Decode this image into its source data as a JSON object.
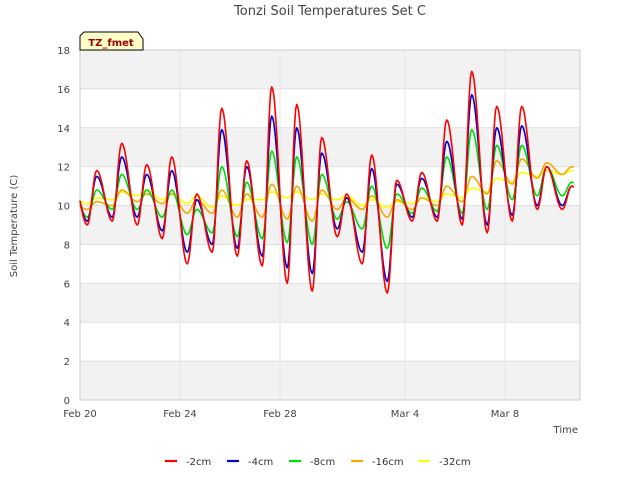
{
  "chart_data": {
    "type": "line",
    "title": "Tonzi Soil Temperatures Set C",
    "xlabel": "Time",
    "ylabel": "Soil Temperature (C)",
    "badge": "TZ_fmet",
    "ylim": [
      0,
      18
    ],
    "xlim": [
      "2020-02-20",
      "2020-03-11"
    ],
    "yticks": [
      0,
      2,
      4,
      6,
      8,
      10,
      12,
      14,
      16,
      18
    ],
    "xticks": [
      {
        "date": "2020-02-20",
        "label": "Feb 20"
      },
      {
        "date": "2020-02-24",
        "label": "Feb 24"
      },
      {
        "date": "2020-02-28",
        "label": "Feb 28"
      },
      {
        "date": "2020-03-04",
        "label": "Mar 4"
      },
      {
        "date": "2020-03-08",
        "label": "Mar 8"
      }
    ],
    "grid": true,
    "band_colors": [
      "#f2f2f2",
      "#ffffff"
    ],
    "legend_position": "bottom",
    "x": [
      "2020-02-20",
      "2020-02-21",
      "2020-02-22",
      "2020-02-23",
      "2020-02-24",
      "2020-02-25",
      "2020-02-26",
      "2020-02-27",
      "2020-02-28",
      "2020-02-29",
      "2020-03-01",
      "2020-03-02",
      "2020-03-03",
      "2020-03-04",
      "2020-03-05",
      "2020-03-06",
      "2020-03-07",
      "2020-03-08",
      "2020-03-09",
      "2020-03-10"
    ],
    "series": [
      {
        "name": "-2cm",
        "color": "#ff0000",
        "min": [
          9.0,
          9.2,
          9.0,
          8.3,
          7.0,
          7.6,
          7.4,
          6.9,
          6.0,
          5.6,
          8.4,
          7.0,
          5.5,
          9.2,
          9.2,
          9.0,
          8.6,
          9.2,
          9.8,
          9.8
        ],
        "max": [
          11.8,
          13.2,
          12.1,
          12.5,
          10.6,
          15.0,
          12.3,
          16.1,
          15.2,
          13.5,
          10.6,
          12.6,
          11.3,
          11.7,
          14.4,
          16.9,
          15.1,
          15.1,
          12.0,
          11.0
        ]
      },
      {
        "name": "-4cm",
        "color": "#0000cc",
        "min": [
          9.2,
          9.4,
          9.4,
          8.7,
          7.6,
          8.0,
          7.8,
          7.4,
          6.8,
          6.5,
          8.8,
          7.6,
          6.1,
          9.4,
          9.4,
          9.3,
          9.0,
          9.5,
          10.0,
          10.0
        ],
        "max": [
          11.5,
          12.5,
          11.6,
          11.8,
          10.3,
          13.9,
          12.0,
          14.6,
          14.0,
          12.7,
          10.4,
          11.9,
          11.1,
          11.4,
          13.3,
          15.7,
          14.0,
          14.1,
          12.0,
          11.0
        ]
      },
      {
        "name": "-8cm",
        "color": "#00dd00",
        "min": [
          9.4,
          9.8,
          9.8,
          9.4,
          8.5,
          8.6,
          8.4,
          8.3,
          8.1,
          8.0,
          9.3,
          8.8,
          7.8,
          9.6,
          9.7,
          9.6,
          9.8,
          10.3,
          10.5,
          10.5
        ],
        "max": [
          10.8,
          11.6,
          10.8,
          10.8,
          9.8,
          12.0,
          11.2,
          12.8,
          12.5,
          11.6,
          10.2,
          11.0,
          10.6,
          10.9,
          12.5,
          13.9,
          13.1,
          13.1,
          12.0,
          11.2
        ]
      },
      {
        "name": "-16cm",
        "color": "#ffa500",
        "min": [
          9.8,
          10.0,
          10.2,
          10.1,
          9.6,
          9.6,
          9.4,
          9.4,
          9.3,
          9.2,
          9.8,
          9.8,
          9.4,
          9.8,
          10.0,
          10.2,
          10.6,
          11.1,
          11.4,
          11.6
        ],
        "max": [
          10.2,
          10.8,
          10.6,
          10.6,
          10.3,
          10.8,
          10.6,
          11.1,
          11.0,
          10.8,
          10.4,
          10.5,
          10.3,
          10.4,
          11.0,
          11.5,
          12.3,
          12.4,
          12.2,
          12.0
        ]
      },
      {
        "name": "-32cm",
        "color": "#ffff00",
        "min": [
          10.1,
          10.3,
          10.5,
          10.3,
          10.1,
          9.9,
          10.0,
          10.3,
          10.4,
          10.3,
          10.3,
          10.0,
          9.9,
          10.1,
          10.2,
          10.4,
          10.7,
          11.2,
          11.5,
          11.6
        ],
        "max": [
          10.4,
          10.7,
          10.8,
          10.6,
          10.5,
          10.5,
          10.3,
          10.7,
          10.7,
          10.6,
          10.5,
          10.3,
          10.2,
          10.4,
          10.6,
          10.9,
          11.4,
          11.7,
          11.8,
          11.8
        ]
      }
    ]
  }
}
